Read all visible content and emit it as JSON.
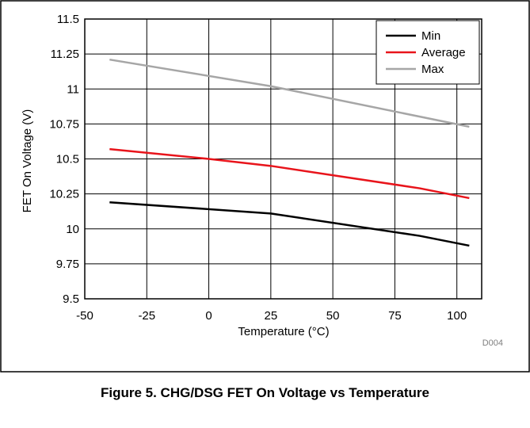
{
  "figure": {
    "caption": "Figure 5. CHG/DSG FET On Voltage vs Temperature",
    "code": "D004"
  },
  "chart_data": {
    "type": "line",
    "title": "",
    "xlabel": "Temperature (°C)",
    "ylabel": "FET On Voltage (V)",
    "xlim": [
      -50,
      110
    ],
    "ylim": [
      9.5,
      11.5
    ],
    "xticks": [
      -50,
      -25,
      0,
      25,
      50,
      75,
      100
    ],
    "xtick_labels": [
      "-50",
      "-25",
      "0",
      "25",
      "50",
      "75",
      "100"
    ],
    "yticks": [
      9.5,
      9.75,
      10,
      10.25,
      10.5,
      10.75,
      11,
      11.25,
      11.5
    ],
    "ytick_labels": [
      "9.5",
      "9.75",
      "10",
      "10.25",
      "10.5",
      "10.75",
      "11",
      "11.25",
      "11.5"
    ],
    "grid": true,
    "legend": "top-right",
    "series": [
      {
        "name": "Min",
        "color": "#000000",
        "x": [
          -40,
          25,
          85,
          105
        ],
        "y": [
          10.19,
          10.11,
          9.95,
          9.88
        ]
      },
      {
        "name": "Average",
        "color": "#e8141b",
        "x": [
          -40,
          0,
          25,
          85,
          105
        ],
        "y": [
          10.57,
          10.5,
          10.45,
          10.29,
          10.22
        ]
      },
      {
        "name": "Max",
        "color": "#a6a6a6",
        "x": [
          -40,
          25,
          105
        ],
        "y": [
          11.21,
          11.02,
          10.73
        ]
      }
    ]
  }
}
